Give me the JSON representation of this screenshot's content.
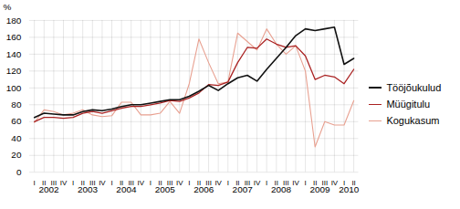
{
  "chart_data": {
    "type": "line",
    "ylabel": "%",
    "categories": [
      "I",
      "II",
      "III",
      "IV",
      "I",
      "II",
      "III",
      "IV",
      "I",
      "II",
      "III",
      "IV",
      "I",
      "II",
      "III",
      "IV",
      "I",
      "II",
      "III",
      "IV",
      "I",
      "II",
      "III",
      "IV",
      "I",
      "II",
      "III",
      "IV",
      "I",
      "II",
      "III",
      "IV",
      "I",
      "II"
    ],
    "category_groups": [
      {
        "label": "2002",
        "count": 4
      },
      {
        "label": "2003",
        "count": 4
      },
      {
        "label": "2004",
        "count": 4
      },
      {
        "label": "2005",
        "count": 4
      },
      {
        "label": "2006",
        "count": 4
      },
      {
        "label": "2007",
        "count": 4
      },
      {
        "label": "2008",
        "count": 4
      },
      {
        "label": "2009",
        "count": 4
      },
      {
        "label": "2010",
        "count": 2
      }
    ],
    "series": [
      {
        "name": "Tööjõukulud",
        "color": "#111111",
        "values": [
          65,
          70,
          69,
          68,
          68,
          72,
          74,
          73,
          75,
          78,
          80,
          80,
          82,
          84,
          86,
          86,
          90,
          96,
          103,
          97,
          105,
          112,
          115,
          108,
          122,
          135,
          148,
          162,
          170,
          168,
          170,
          172,
          128,
          135
        ]
      },
      {
        "name": "Müügitulu",
        "color": "#aa2222",
        "values": [
          60,
          65,
          65,
          64,
          65,
          70,
          72,
          70,
          73,
          76,
          78,
          78,
          80,
          82,
          85,
          84,
          88,
          94,
          104,
          103,
          107,
          130,
          148,
          147,
          158,
          152,
          148,
          150,
          138,
          110,
          115,
          113,
          105,
          122
        ]
      },
      {
        "name": "Kogukasum",
        "color": "#e8a090",
        "values": [
          59,
          74,
          72,
          68,
          70,
          74,
          68,
          66,
          67,
          83,
          83,
          68,
          68,
          70,
          84,
          70,
          105,
          158,
          130,
          105,
          107,
          165,
          155,
          145,
          170,
          152,
          140,
          150,
          120,
          30,
          60,
          56,
          56,
          85
        ]
      }
    ],
    "ylim": [
      0,
      180
    ],
    "yticks": [
      0,
      20,
      40,
      60,
      80,
      100,
      120,
      140,
      160,
      180
    ],
    "grid": true
  }
}
